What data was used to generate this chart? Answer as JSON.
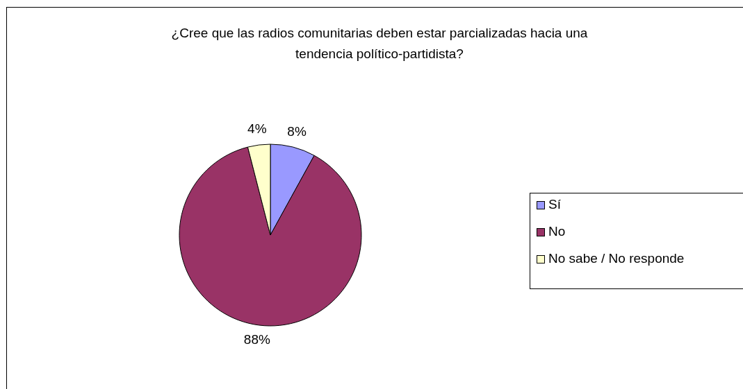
{
  "chart_data": {
    "type": "pie",
    "title": "¿Cree que las radios comunitarias deben estar parcializadas hacia una tendencia político-partidista?",
    "categories": [
      "Sí",
      "No",
      "No sabe / No responde"
    ],
    "values": [
      8,
      88,
      4
    ],
    "colors": [
      "#9999ff",
      "#993366",
      "#ffffcc"
    ],
    "value_labels": [
      "8%",
      "88%",
      "4%"
    ],
    "legend": "right"
  }
}
